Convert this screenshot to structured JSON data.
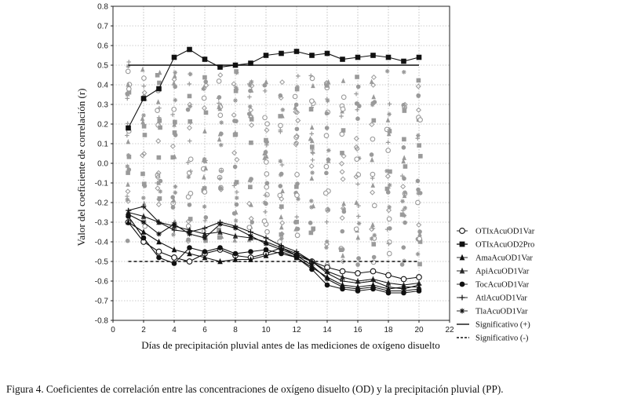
{
  "caption": "Figura 4. Coeficientes de correlación entre las concentraciones de oxígeno disuelto (OD) y la precipitación pluvial (PP).",
  "chart_data": {
    "type": "line",
    "xlabel": "Días de precipitación pluvial antes de las mediciones de oxígeno disuelto",
    "ylabel": "Valor del coeficiente de correlación (r)",
    "xlim": [
      0,
      22
    ],
    "ylim": [
      -0.8,
      0.8
    ],
    "xticks": [
      0,
      2,
      4,
      6,
      8,
      10,
      12,
      14,
      16,
      18,
      20,
      22
    ],
    "yticks": [
      -0.8,
      -0.7,
      -0.6,
      -0.5,
      -0.4,
      -0.3,
      -0.2,
      -0.1,
      0.0,
      0.1,
      0.2,
      0.3,
      0.4,
      0.5,
      0.6,
      0.7,
      0.8
    ],
    "ytick_labels": [
      "-0.8",
      "-0.7",
      "-0.6",
      "-0.5",
      "-0.4",
      "-0.3",
      "-0.2",
      "-0.1",
      "0.0",
      "0.1",
      "0.2",
      "0.3",
      "0.4",
      "0.5",
      "0.6",
      "0.7",
      "0.8"
    ],
    "grid": true,
    "legend_position": "right",
    "x": [
      1,
      2,
      3,
      4,
      5,
      6,
      7,
      8,
      9,
      10,
      11,
      12,
      13,
      14,
      15,
      16,
      17,
      18,
      19,
      20
    ],
    "series": [
      {
        "name": "OTIxAcuOD1Var",
        "marker": "circle-open",
        "values": [
          -0.3,
          -0.4,
          -0.45,
          -0.48,
          -0.5,
          -0.46,
          -0.44,
          -0.47,
          -0.48,
          -0.46,
          -0.43,
          -0.47,
          -0.5,
          -0.53,
          -0.55,
          -0.56,
          -0.55,
          -0.57,
          -0.59,
          -0.58
        ]
      },
      {
        "name": "OTIxAcuOD2Pro",
        "marker": "square",
        "values": [
          0.18,
          0.33,
          0.38,
          0.54,
          0.58,
          0.53,
          0.49,
          0.5,
          0.51,
          0.55,
          0.56,
          0.57,
          0.55,
          0.56,
          0.53,
          0.54,
          0.55,
          0.54,
          0.52,
          0.54
        ]
      },
      {
        "name": "AmaAcuOD1Var",
        "marker": "triangle",
        "values": [
          -0.3,
          -0.35,
          -0.4,
          -0.44,
          -0.46,
          -0.48,
          -0.5,
          -0.49,
          -0.49,
          -0.47,
          -0.45,
          -0.48,
          -0.53,
          -0.58,
          -0.62,
          -0.63,
          -0.62,
          -0.64,
          -0.63,
          -0.63
        ]
      },
      {
        "name": "ApiAcuOD1Var",
        "marker": "triangle-half",
        "values": [
          -0.25,
          -0.27,
          -0.3,
          -0.32,
          -0.34,
          -0.36,
          -0.35,
          -0.37,
          -0.38,
          -0.4,
          -0.43,
          -0.46,
          -0.5,
          -0.55,
          -0.58,
          -0.6,
          -0.59,
          -0.61,
          -0.62,
          -0.61
        ]
      },
      {
        "name": "TocAcuOD1Var",
        "marker": "circle",
        "values": [
          -0.27,
          -0.38,
          -0.48,
          -0.51,
          -0.43,
          -0.45,
          -0.43,
          -0.46,
          -0.45,
          -0.44,
          -0.46,
          -0.48,
          -0.54,
          -0.62,
          -0.64,
          -0.65,
          -0.64,
          -0.66,
          -0.66,
          -0.65
        ]
      },
      {
        "name": "AtlAcuOD1Var",
        "marker": "plus",
        "values": [
          -0.24,
          -0.22,
          -0.3,
          -0.34,
          -0.35,
          -0.33,
          -0.3,
          -0.32,
          -0.35,
          -0.38,
          -0.42,
          -0.45,
          -0.5,
          -0.56,
          -0.6,
          -0.61,
          -0.6,
          -0.63,
          -0.64,
          -0.62
        ]
      },
      {
        "name": "TlaAcuOD1Var",
        "marker": "asterisk",
        "values": [
          -0.26,
          -0.3,
          -0.36,
          -0.31,
          -0.36,
          -0.38,
          -0.31,
          -0.33,
          -0.37,
          -0.41,
          -0.44,
          -0.47,
          -0.52,
          -0.59,
          -0.63,
          -0.64,
          -0.63,
          -0.65,
          -0.65,
          -0.64
        ]
      }
    ],
    "reference_lines": [
      {
        "name": "Significativo (+)",
        "value": 0.5,
        "style": "solid"
      },
      {
        "name": "Significativo (-)",
        "value": -0.5,
        "style": "dashed"
      }
    ],
    "background_scatter_note_color": "#9a9a9a"
  }
}
